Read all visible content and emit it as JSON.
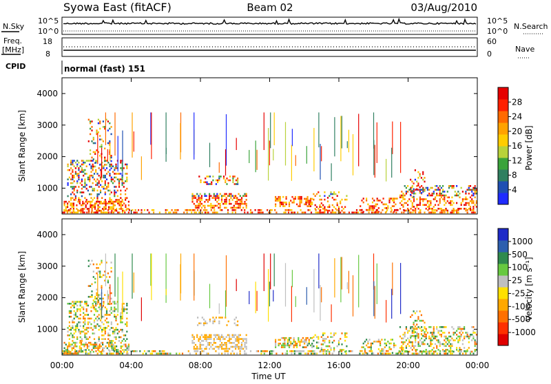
{
  "header": {
    "title": "Syowa East (fitACF)",
    "beam": "Beam 02",
    "date": "03/Aug/2010"
  },
  "noise_panel": {
    "left_label": "N.Sky",
    "right_label": "N.Search",
    "tick_top": "10^5",
    "tick_bottom": "10^0"
  },
  "freq_panel": {
    "left_label_1": "Freq.",
    "left_label_2": "[MHz]",
    "left_tick_top": "18",
    "left_tick_bottom": "8",
    "right_label": "Nave",
    "right_tick_top": "60",
    "right_tick_bottom": "0"
  },
  "cpid": {
    "label": "CPID",
    "value": "normal (fast) 151"
  },
  "chart_data": [
    {
      "type": "heatmap",
      "ylabel": "Slant Range [km]",
      "xlabel": "",
      "y_ticks": [
        "1000",
        "2000",
        "3000",
        "4000"
      ],
      "colorbar_label": "Power [dB]",
      "colorbar_ticks": [
        "4",
        "8",
        "12",
        "16",
        "20",
        "24",
        "28"
      ],
      "colors": [
        "#1f2bff",
        "#1f4fb2",
        "#2f7f60",
        "#3aa33a",
        "#b8d23a",
        "#ffcc00",
        "#ffa200",
        "#ff6a00",
        "#ff2000",
        "#e60000"
      ]
    },
    {
      "type": "heatmap",
      "ylabel": "Slant Range [km]",
      "xlabel": "Time UT",
      "x_ticks": [
        "00:00",
        "04:00",
        "08:00",
        "12:00",
        "16:00",
        "20:00",
        "00:00"
      ],
      "y_ticks": [
        "1000",
        "2000",
        "3000",
        "4000"
      ],
      "colorbar_label": "Velocity [m s⁻¹]",
      "colorbar_ticks": [
        "1000",
        "500",
        "100",
        "25",
        "-25",
        "-100",
        "-500",
        "-1000"
      ],
      "colors": [
        "#1e2ac8",
        "#2d5fae",
        "#2f8a4e",
        "#67c940",
        "#bfbfbf",
        "#ffe000",
        "#ffa800",
        "#ff7000",
        "#ff3000",
        "#e00000"
      ]
    }
  ]
}
